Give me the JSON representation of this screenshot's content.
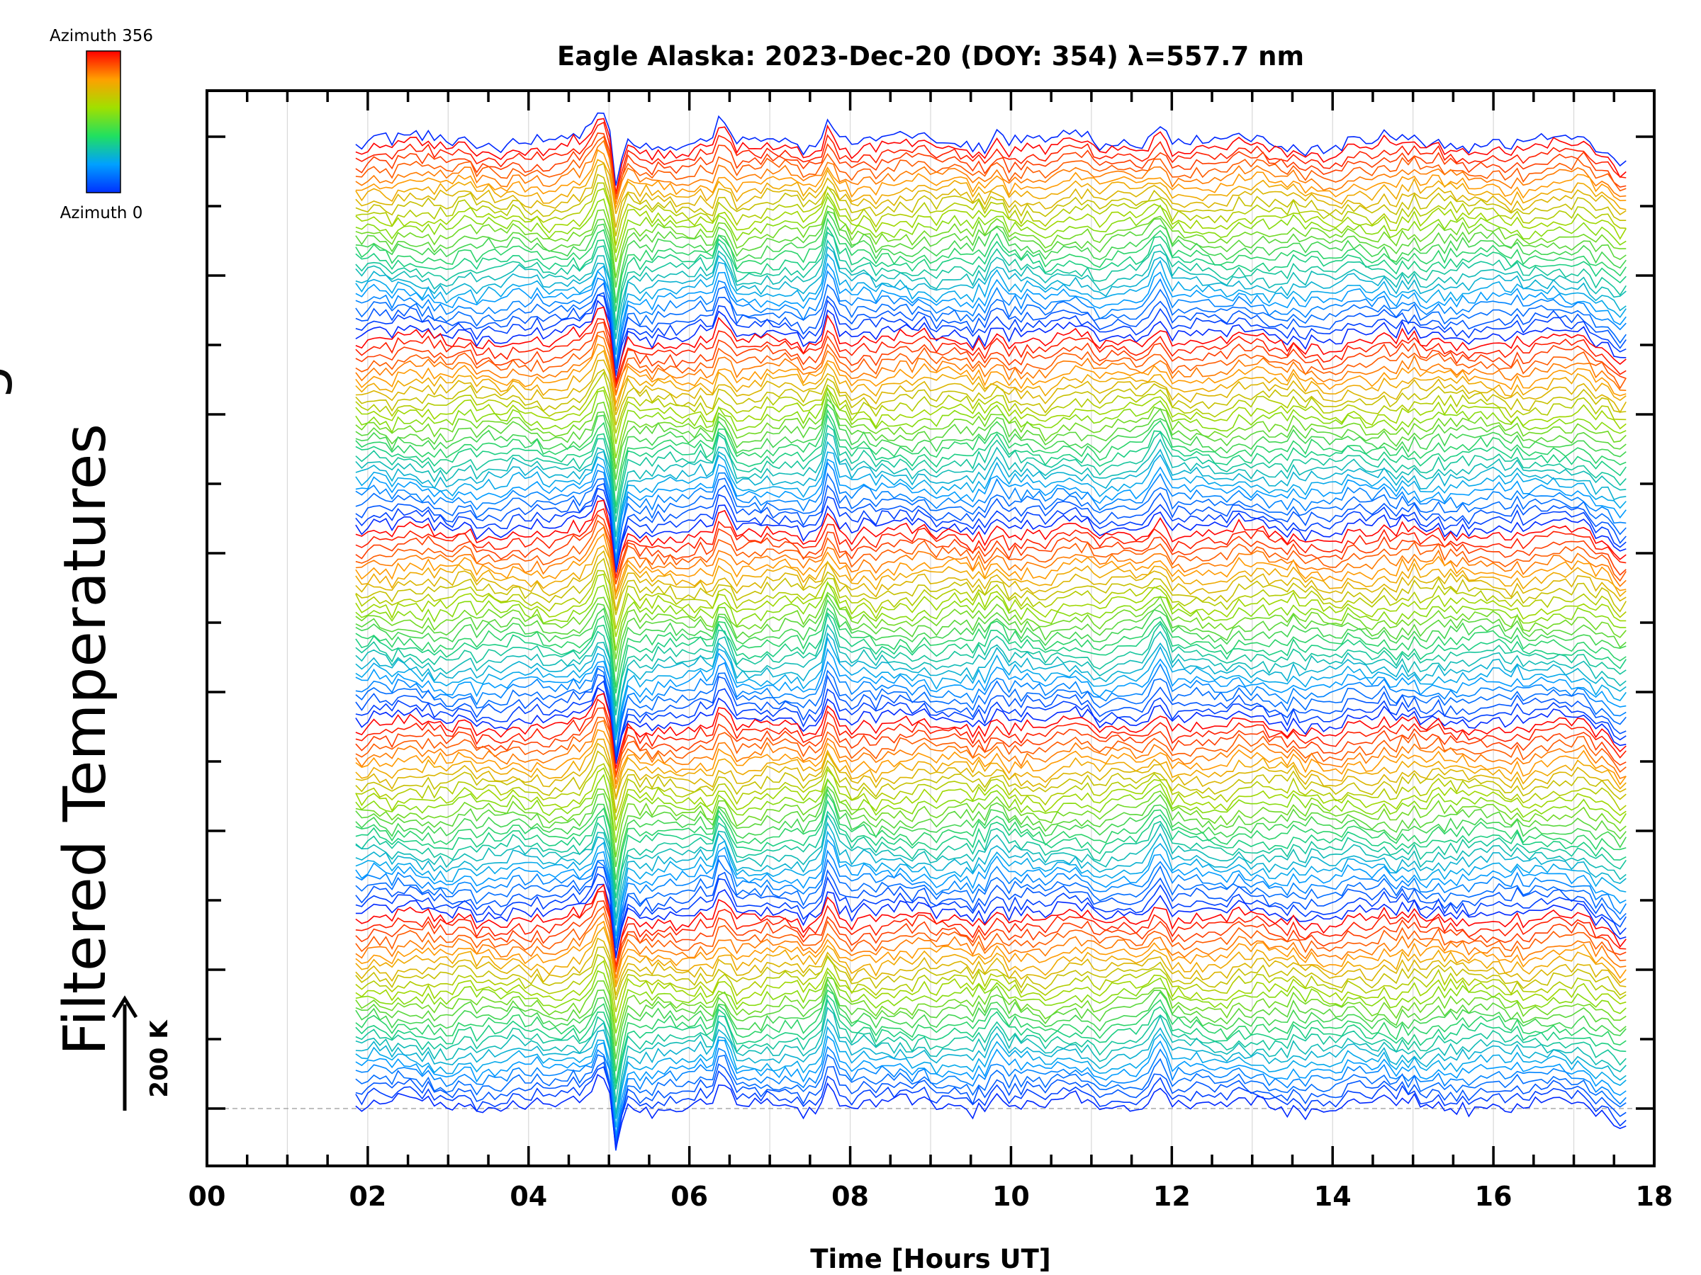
{
  "chart_data": {
    "type": "line",
    "title": "Eagle Alaska: 2023-Dec-20 (DOY: 354) λ=557.7 nm",
    "xlabel": "Time [Hours UT]",
    "ylabel": "Filtered Temperatures",
    "ylabel_partial_glyph": "g",
    "scale_bar_label": "200 K",
    "scale_bar_kelvin": 200,
    "xlim": [
      0,
      18
    ],
    "x_ticks": [
      "00",
      "02",
      "04",
      "06",
      "08",
      "10",
      "12",
      "14",
      "16",
      "18"
    ],
    "x_tick_values": [
      0,
      2,
      4,
      6,
      8,
      10,
      12,
      14,
      16,
      18
    ],
    "data_time_range": [
      1.85,
      17.65
    ],
    "grid_vertical": true,
    "stack_count": 136,
    "azimuth_range": [
      0,
      356
    ],
    "azimuth_cycles": 5,
    "colorbar": {
      "top_label": "Azimuth 356",
      "bottom_label": "Azimuth 0",
      "colormap": "rainbow",
      "low_color": "#0000ff",
      "high_color": "#ff0000"
    },
    "features": [
      {
        "time": 5.1,
        "kind": "sharp dip then rise",
        "amplitude_k": 120
      },
      {
        "time": 6.4,
        "kind": "peak",
        "amplitude_k": 60
      },
      {
        "time": 7.75,
        "kind": "peak",
        "amplitude_k": 70
      },
      {
        "time": 9.8,
        "kind": "peak",
        "amplitude_k": 35
      },
      {
        "time": 11.85,
        "kind": "peak",
        "amplitude_k": 55
      },
      {
        "time": 17.1,
        "kind": "drop at end",
        "amplitude_k": 40
      }
    ]
  }
}
